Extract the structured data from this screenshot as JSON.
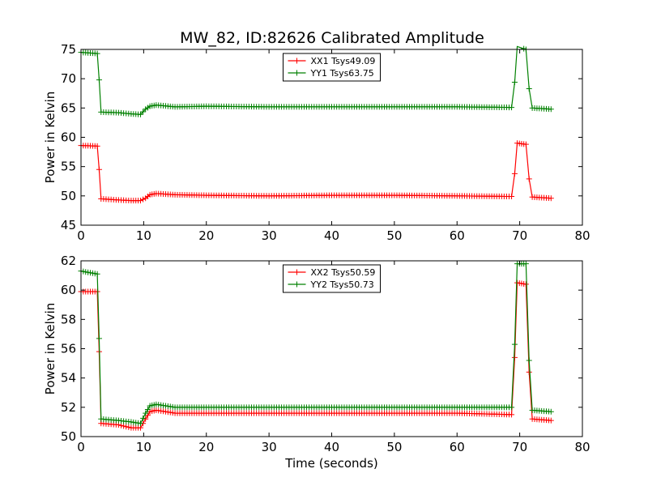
{
  "figure": {
    "title": "MW_82, ID:82626 Calibrated Amplitude"
  },
  "chart_data": [
    {
      "type": "line",
      "title": "MW_82, ID:82626 Calibrated Amplitude",
      "xlabel": "",
      "ylabel": "Power in Kelvin",
      "xlim": [
        0,
        80
      ],
      "ylim": [
        45,
        75
      ],
      "xticks": [
        "0",
        "10",
        "20",
        "30",
        "40",
        "50",
        "60",
        "70",
        "80"
      ],
      "yticks": [
        "45",
        "50",
        "55",
        "60",
        "65",
        "70",
        "75"
      ],
      "grid": false,
      "legend_position": "top-center",
      "series": [
        {
          "name": "XX1 Tsys49.09",
          "color": "#ff0000",
          "marker": "plus",
          "points": [
            [
              0,
              58.6
            ],
            [
              2.6,
              58.5
            ],
            [
              2.9,
              54.5
            ],
            [
              3.2,
              49.5
            ],
            [
              6,
              49.3
            ],
            [
              8,
              49.2
            ],
            [
              9.5,
              49.2
            ],
            [
              10.3,
              49.6
            ],
            [
              11,
              50.2
            ],
            [
              12,
              50.4
            ],
            [
              15,
              50.2
            ],
            [
              20,
              50.1
            ],
            [
              30,
              50.0
            ],
            [
              40,
              50.1
            ],
            [
              50,
              50.1
            ],
            [
              60,
              50.0
            ],
            [
              68.7,
              49.9
            ],
            [
              69.2,
              53.8
            ],
            [
              69.6,
              59.0
            ],
            [
              71,
              58.8
            ],
            [
              71.5,
              52.9
            ],
            [
              72,
              49.8
            ],
            [
              75,
              49.6
            ]
          ]
        },
        {
          "name": "YY1 Tsys63.75",
          "color": "#008000",
          "marker": "plus",
          "points": [
            [
              0,
              74.5
            ],
            [
              2.6,
              74.3
            ],
            [
              2.9,
              69.8
            ],
            [
              3.2,
              64.3
            ],
            [
              6,
              64.2
            ],
            [
              8,
              64.0
            ],
            [
              9.5,
              63.9
            ],
            [
              10.3,
              64.8
            ],
            [
              11,
              65.3
            ],
            [
              12,
              65.5
            ],
            [
              15,
              65.2
            ],
            [
              20,
              65.3
            ],
            [
              30,
              65.2
            ],
            [
              40,
              65.2
            ],
            [
              50,
              65.2
            ],
            [
              60,
              65.2
            ],
            [
              68.7,
              65.1
            ],
            [
              69.2,
              69.4
            ],
            [
              69.6,
              75.5
            ],
            [
              71,
              75.0
            ],
            [
              71.5,
              68.3
            ],
            [
              72,
              65.0
            ],
            [
              75,
              64.8
            ]
          ]
        }
      ]
    },
    {
      "type": "line",
      "title": "",
      "xlabel": "Time (seconds)",
      "ylabel": "Power in Kelvin",
      "xlim": [
        0,
        80
      ],
      "ylim": [
        50,
        62
      ],
      "xticks": [
        "0",
        "10",
        "20",
        "30",
        "40",
        "50",
        "60",
        "70",
        "80"
      ],
      "yticks": [
        "50",
        "52",
        "54",
        "56",
        "58",
        "60",
        "62"
      ],
      "grid": false,
      "legend_position": "top-center",
      "series": [
        {
          "name": "XX2 Tsys50.59",
          "color": "#ff0000",
          "marker": "plus",
          "points": [
            [
              0,
              59.9
            ],
            [
              2.6,
              59.9
            ],
            [
              2.9,
              55.8
            ],
            [
              3.2,
              50.9
            ],
            [
              6,
              50.8
            ],
            [
              8,
              50.6
            ],
            [
              9.5,
              50.6
            ],
            [
              10.3,
              51.2
            ],
            [
              11,
              51.7
            ],
            [
              12,
              51.8
            ],
            [
              15,
              51.6
            ],
            [
              20,
              51.6
            ],
            [
              30,
              51.6
            ],
            [
              40,
              51.6
            ],
            [
              50,
              51.6
            ],
            [
              60,
              51.6
            ],
            [
              68.7,
              51.5
            ],
            [
              69.2,
              55.4
            ],
            [
              69.6,
              60.5
            ],
            [
              71,
              60.4
            ],
            [
              71.5,
              54.4
            ],
            [
              72,
              51.2
            ],
            [
              75,
              51.1
            ]
          ]
        },
        {
          "name": "YY2 Tsys50.73",
          "color": "#008000",
          "marker": "plus",
          "points": [
            [
              0,
              61.3
            ],
            [
              2.6,
              61.1
            ],
            [
              2.9,
              56.7
            ],
            [
              3.2,
              51.2
            ],
            [
              6,
              51.1
            ],
            [
              8,
              51.0
            ],
            [
              9.5,
              50.9
            ],
            [
              10.3,
              51.6
            ],
            [
              11,
              52.1
            ],
            [
              12,
              52.2
            ],
            [
              15,
              52.0
            ],
            [
              20,
              52.0
            ],
            [
              30,
              52.0
            ],
            [
              40,
              52.0
            ],
            [
              50,
              52.0
            ],
            [
              60,
              52.0
            ],
            [
              68.7,
              52.0
            ],
            [
              69.2,
              56.3
            ],
            [
              69.6,
              61.8
            ],
            [
              71,
              61.8
            ],
            [
              71.5,
              55.2
            ],
            [
              72,
              51.8
            ],
            [
              75,
              51.7
            ]
          ]
        }
      ]
    }
  ]
}
